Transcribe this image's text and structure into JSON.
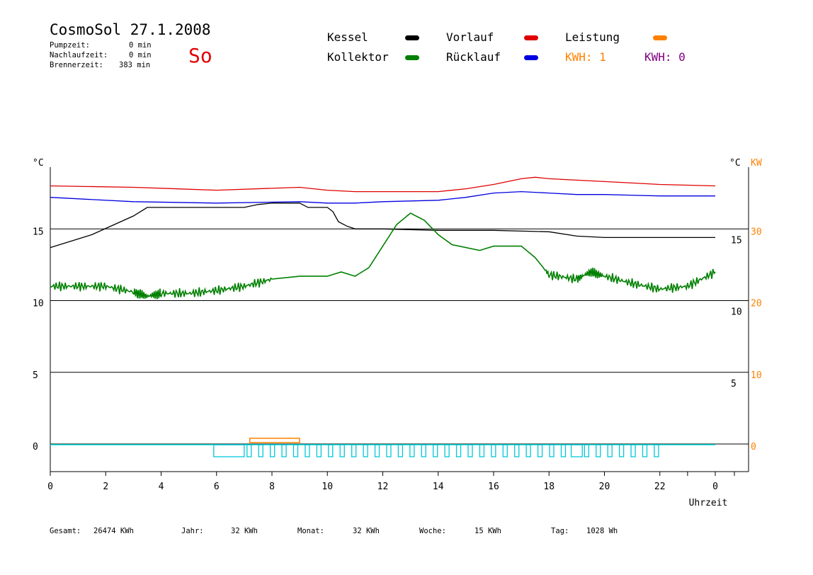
{
  "header": {
    "title": "CosmoSol 27.1.2008",
    "day": "So",
    "pumpzeit_label": "Pumpzeit:",
    "pumpzeit_value": "0 min",
    "nachlaufzeit_label": "Nachlaufzeit:",
    "nachlaufzeit_value": "0 min",
    "brennerzeit_label": "Brennerzeit:",
    "brennerzeit_value": "383 min"
  },
  "legend": {
    "kessel": "Kessel",
    "kollektor": "Kollektor",
    "vorlauf": "Vorlauf",
    "ruecklauf": "Rücklauf",
    "leistung": "Leistung",
    "kwh1": "KWH: 1",
    "kwh0": "KWH: 0",
    "colors": {
      "kessel": "#000000",
      "kollektor": "#008000",
      "vorlauf": "#e00000",
      "ruecklauf": "#0000e0",
      "leistung": "#ff8000",
      "kwh0": "#800080"
    }
  },
  "footer": {
    "gesamt_label": "Gesamt:",
    "gesamt_value": "26474 KWh",
    "jahr_label": "Jahr:",
    "jahr_value": "32 KWh",
    "monat_label": "Monat:",
    "monat_value": "32 KWh",
    "woche_label": "Woche:",
    "woche_value": "15 KWh",
    "tag_label": "Tag:",
    "tag_value": "1028 Wh"
  },
  "chart_data": {
    "type": "line",
    "xlabel": "Uhrzeit",
    "ylabel_left": "°C",
    "ylabel_right": "°C",
    "ylabel_right2": "KW",
    "x_ticks": [
      "0",
      "2",
      "4",
      "6",
      "8",
      "10",
      "12",
      "14",
      "16",
      "18",
      "20",
      "22",
      "0"
    ],
    "left_ticks": [
      "15",
      "10",
      "5",
      "0"
    ],
    "right_ticks": [
      "15",
      "10",
      "5"
    ],
    "kw_ticks": [
      "30",
      "20",
      "10",
      "0"
    ],
    "xlim": [
      0,
      24
    ],
    "ylim": [
      -1.8,
      20
    ],
    "series": [
      {
        "name": "Vorlauf",
        "color": "#e00000",
        "x": [
          0,
          3,
          6,
          9,
          10,
          11,
          14,
          15,
          16,
          17,
          17.5,
          18,
          19,
          20,
          21,
          22,
          24
        ],
        "y": [
          18.0,
          17.9,
          17.7,
          17.9,
          17.7,
          17.6,
          17.6,
          17.8,
          18.1,
          18.5,
          18.6,
          18.5,
          18.4,
          18.3,
          18.2,
          18.1,
          18.0
        ]
      },
      {
        "name": "Rücklauf",
        "color": "#0000e0",
        "x": [
          0,
          3,
          6,
          9,
          10,
          11,
          12,
          14,
          15,
          16,
          17,
          18,
          19,
          20,
          22,
          24
        ],
        "y": [
          17.2,
          16.9,
          16.8,
          16.9,
          16.8,
          16.8,
          16.9,
          17.0,
          17.2,
          17.5,
          17.6,
          17.5,
          17.4,
          17.4,
          17.3,
          17.3
        ]
      },
      {
        "name": "Kessel",
        "color": "#000000",
        "x": [
          0,
          1.5,
          3,
          3.5,
          6,
          7,
          7.5,
          8,
          9,
          9.3,
          10,
          10.2,
          10.4,
          10.7,
          11,
          12,
          14,
          16,
          18,
          19,
          20,
          22,
          24
        ],
        "y": [
          13.7,
          14.6,
          15.9,
          16.5,
          16.5,
          16.5,
          16.7,
          16.8,
          16.8,
          16.5,
          16.5,
          16.2,
          15.5,
          15.2,
          15.0,
          15.0,
          14.9,
          14.9,
          14.8,
          14.5,
          14.4,
          14.4,
          14.4
        ]
      },
      {
        "name": "Kollektor",
        "color": "#008000",
        "x": [
          0,
          1,
          2,
          3,
          3.5,
          4,
          5,
          6,
          7,
          8,
          9,
          10,
          10.5,
          11,
          11.5,
          12,
          12.5,
          13,
          13.5,
          14,
          14.5,
          15,
          15.5,
          16,
          16.5,
          17,
          17.5,
          18,
          19,
          19.5,
          20,
          21,
          22,
          23,
          24
        ],
        "y": [
          11.0,
          11.0,
          11.0,
          10.6,
          10.3,
          10.5,
          10.5,
          10.7,
          11.0,
          11.5,
          11.7,
          11.7,
          12.0,
          11.7,
          12.3,
          13.8,
          15.3,
          16.1,
          15.6,
          14.6,
          13.9,
          13.7,
          13.5,
          13.8,
          13.8,
          13.8,
          13.0,
          11.8,
          11.5,
          12.0,
          11.7,
          11.2,
          10.8,
          11.0,
          12.0
        ]
      },
      {
        "name": "Leistung",
        "color": "#ff8000",
        "x": [
          7.2,
          9.0
        ],
        "y": [
          0.2,
          0.2
        ]
      }
    ]
  }
}
